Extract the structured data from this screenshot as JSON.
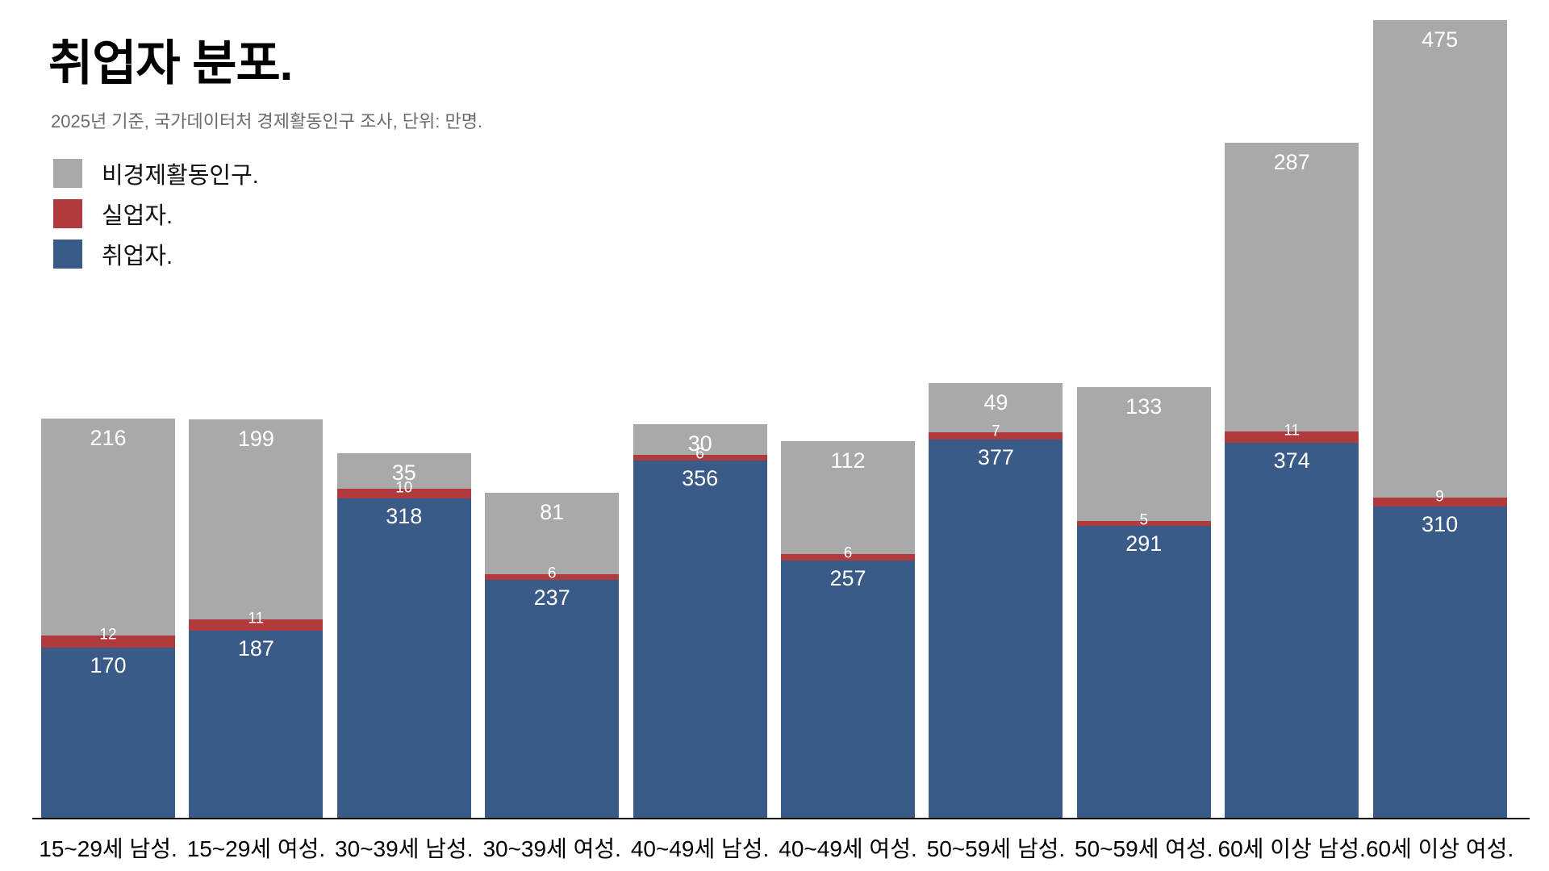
{
  "chart_data": {
    "type": "bar",
    "stacked": true,
    "title": "취업자 분포.",
    "subtitle": "2025년 기준, 국가데이터처 경제활동인구 조사, 단위: 만명.",
    "categories": [
      "15~29세 남성.",
      "15~29세 여성.",
      "30~39세 남성.",
      "30~39세 여성.",
      "40~49세 남성.",
      "40~49세 여성.",
      "50~59세 남성.",
      "50~59세 여성.",
      "60세 이상 남성.",
      "60세 이상 여성."
    ],
    "series": [
      {
        "name": "비경제활동인구.",
        "color": "#a9a9a9",
        "values": [
          216,
          199,
          35,
          81,
          30,
          112,
          49,
          133,
          287,
          475
        ]
      },
      {
        "name": "실업자.",
        "color": "#b03a3c",
        "values": [
          12,
          11,
          10,
          6,
          6,
          6,
          7,
          5,
          11,
          9
        ]
      },
      {
        "name": "취업자.",
        "color": "#3a5a87",
        "values": [
          170,
          187,
          318,
          237,
          356,
          257,
          377,
          291,
          374,
          310
        ]
      }
    ],
    "value_label_color": "#ffffff",
    "axis_line_color": "#000000",
    "legend_position": "top-left",
    "grid": false,
    "background": "#ffffff"
  }
}
